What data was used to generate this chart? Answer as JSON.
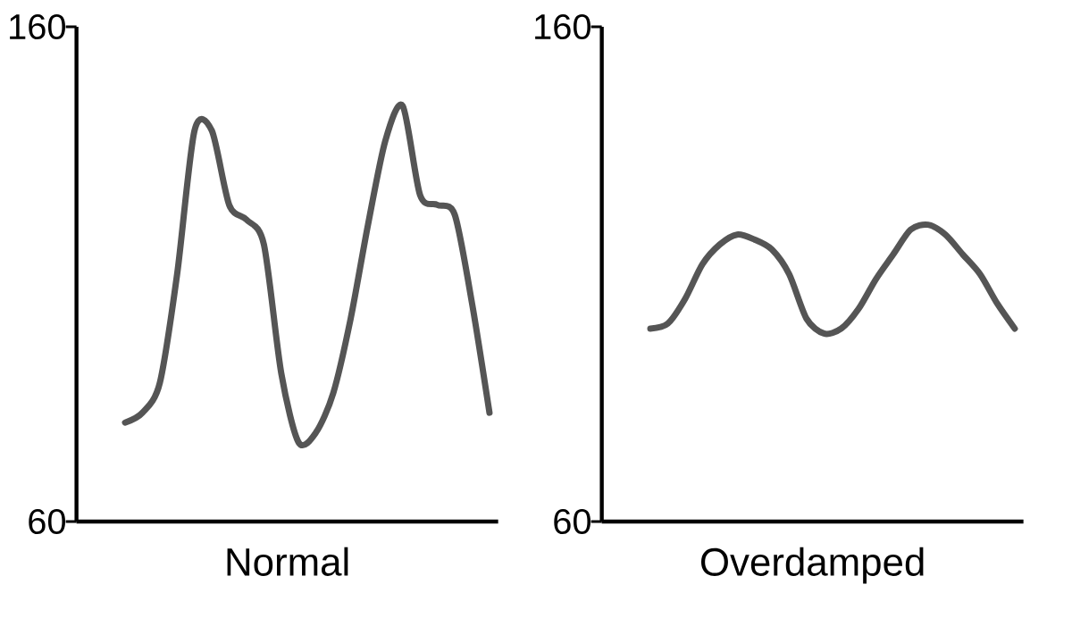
{
  "chart_data": [
    {
      "type": "line",
      "xlabel": "Normal",
      "categories": [
        null,
        null,
        null,
        null,
        null,
        null,
        null,
        null,
        null,
        null,
        null,
        null,
        null,
        null,
        null,
        null,
        null,
        null,
        null,
        null,
        null,
        null
      ],
      "series": [
        {
          "color": "#555555",
          "values": [
            80,
            82,
            88,
            110,
            139,
            139,
            124,
            121,
            116,
            90,
            76,
            78,
            86,
            101,
            120,
            137,
            144,
            126,
            124,
            122,
            104,
            82
          ]
        }
      ],
      "ylim": [
        60,
        160
      ],
      "yticks": [
        60,
        160
      ],
      "tick_labels": "y",
      "grid": false,
      "marker": "none",
      "line_style": "solid"
    },
    {
      "type": "line",
      "xlabel": "Overdamped",
      "categories": [
        null,
        null,
        null,
        null,
        null,
        null,
        null,
        null,
        null,
        null,
        null,
        null,
        null,
        null,
        null,
        null,
        null,
        null,
        null,
        null,
        null,
        null
      ],
      "series": [
        {
          "color": "#555555",
          "values": [
            99,
            100,
            105,
            112,
            116,
            118,
            117,
            115,
            110,
            101,
            98,
            99,
            103,
            109,
            114,
            119,
            120,
            118,
            114,
            110,
            104,
            99
          ]
        }
      ],
      "ylim": [
        60,
        160
      ],
      "yticks": [
        60,
        160
      ],
      "tick_labels": "y",
      "grid": false,
      "marker": "none",
      "line_style": "solid"
    }
  ]
}
